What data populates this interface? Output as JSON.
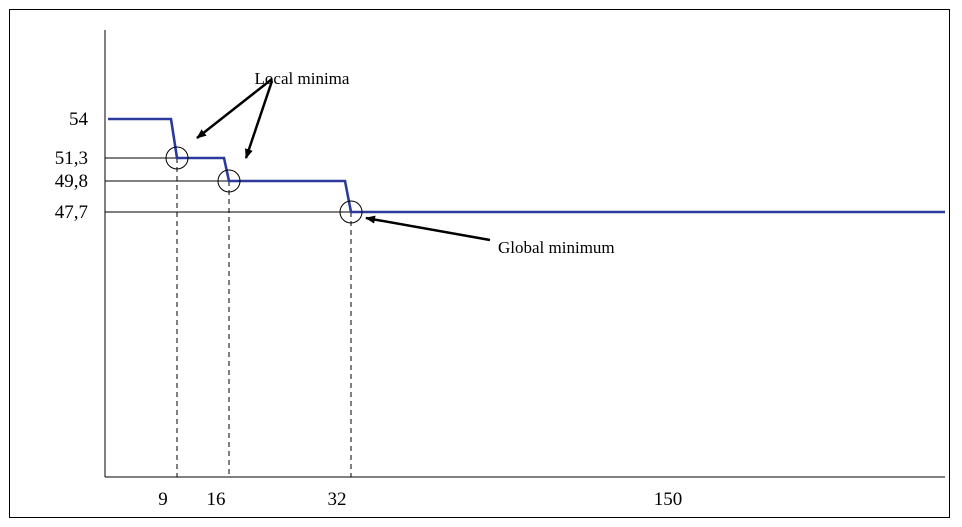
{
  "chart_data": {
    "type": "line",
    "title": "",
    "xlabel": "",
    "ylabel": "",
    "x_ticks": [
      "9",
      "16",
      "32",
      "150"
    ],
    "y_ticks": [
      "54",
      "51,3",
      "49,8",
      "47,7"
    ],
    "series": [
      {
        "color": "#2b3a9c",
        "points": [
          [
            0,
            54
          ],
          [
            8.0,
            54
          ],
          [
            9,
            51.3
          ],
          [
            15,
            51.3
          ],
          [
            16,
            49.8
          ],
          [
            31,
            49.8
          ],
          [
            32,
            47.7
          ],
          [
            150,
            47.7
          ]
        ]
      }
    ],
    "minima": [
      {
        "x": 9,
        "y": 51.3
      },
      {
        "x": 16,
        "y": 49.8
      },
      {
        "x": 32,
        "y": 47.7
      }
    ],
    "annotations": {
      "local_label": "Local minima",
      "global_label": "Global minimum"
    },
    "grid": false,
    "colors": {
      "line": "#2b3a9c",
      "axis": "#000000",
      "guides": "#000000"
    }
  }
}
